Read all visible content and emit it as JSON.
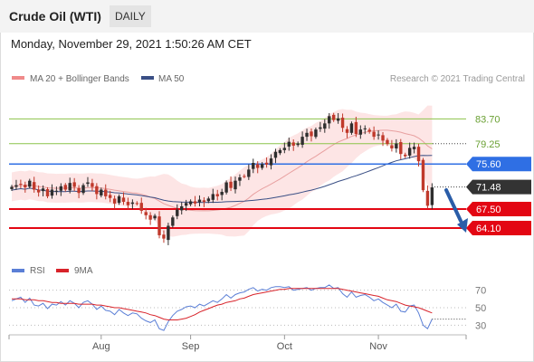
{
  "header": {
    "title": "Crude Oil (WTI)",
    "timeframe": "DAILY"
  },
  "datetime": "Monday, November 29, 2021 1:50:26 AM CET",
  "legend": {
    "ma": "MA 20 + Bollinger Bands",
    "ma50": "MA 50",
    "rsi": "RSI",
    "rsi_ma": "9MA"
  },
  "copyright": "Research © 2021 Trading Central",
  "colors": {
    "bull": "#2e2e2e",
    "bear": "#c0392b",
    "ma20": "#e8a0a0",
    "band": "#fde0e0",
    "ma50": "#3a4f85",
    "green": "#8bc34a",
    "blue": "#2f6fe4",
    "red": "#e30613",
    "arrow": "#2a5da8",
    "rsi": "#5b7fd6",
    "rsi_ma": "#d8232a"
  },
  "chart_data": [
    {
      "type": "candlestick",
      "title": "Crude Oil (WTI)",
      "price_range": [
        58.4,
        89.3
      ],
      "x_ticks": [
        "Aug",
        "Sep",
        "Oct",
        "Nov"
      ],
      "levels": [
        {
          "label": "83.70",
          "value": 83.7,
          "color": "green",
          "style": "line"
        },
        {
          "label": "79.25",
          "value": 79.25,
          "color": "green",
          "style": "dotted-label"
        },
        {
          "label": "75.60",
          "value": 75.6,
          "color": "blue",
          "style": "tag"
        },
        {
          "label": "71.48",
          "value": 71.48,
          "color": "last",
          "style": "tag"
        },
        {
          "label": "67.50",
          "value": 67.5,
          "color": "red",
          "style": "tag"
        },
        {
          "label": "64.10",
          "value": 64.1,
          "color": "red",
          "style": "tag"
        }
      ],
      "closes": [
        71.5,
        71.8,
        72.0,
        71.4,
        72.6,
        71.0,
        70.5,
        71.2,
        69.8,
        71.0,
        70.8,
        71.6,
        71.0,
        72.2,
        71.5,
        70.4,
        71.8,
        72.3,
        71.5,
        70.2,
        71.0,
        69.8,
        69.5,
        68.5,
        69.8,
        68.8,
        68.2,
        68.7,
        68.5,
        67.2,
        66.4,
        65.6,
        66.3,
        62.8,
        62.2,
        64.5,
        66.0,
        67.4,
        68.0,
        68.6,
        68.9,
        68.5,
        69.2,
        68.8,
        69.4,
        70.2,
        69.8,
        70.6,
        72.3,
        71.3,
        72.6,
        73.2,
        73.4,
        74.6,
        75.8,
        74.9,
        75.6,
        75.5,
        76.6,
        77.8,
        78.1,
        78.5,
        79.6,
        78.9,
        79.3,
        80.5,
        81.2,
        80.6,
        81.8,
        82.2,
        82.9,
        84.2,
        83.5,
        83.8,
        82.1,
        81.2,
        82.9,
        81.0,
        81.8,
        82.0,
        81.4,
        80.5,
        80.9,
        79.8,
        79.2,
        78.4,
        79.3,
        77.4,
        77.0,
        78.5,
        78.7,
        76.1,
        70.9,
        68.1,
        71.4
      ]
    },
    {
      "type": "line",
      "title": "RSI",
      "ylim": [
        20,
        80
      ],
      "y_ticks": [
        "70",
        "50",
        "30"
      ],
      "series": [
        {
          "name": "RSI",
          "values": [
            58,
            60,
            62,
            56,
            61,
            53,
            52,
            55,
            49,
            54,
            53,
            57,
            53,
            58,
            55,
            50,
            56,
            58,
            54,
            48,
            52,
            47,
            46,
            42,
            48,
            44,
            41,
            44,
            43,
            38,
            35,
            33,
            36,
            26,
            24,
            34,
            41,
            46,
            48,
            51,
            52,
            50,
            54,
            52,
            55,
            58,
            56,
            60,
            65,
            61,
            65,
            67,
            68,
            71,
            73,
            69,
            71,
            70,
            73,
            74,
            74,
            73,
            74,
            70,
            71,
            72,
            73,
            70,
            72,
            73,
            73,
            76,
            72,
            73,
            66,
            62,
            68,
            62,
            64,
            65,
            62,
            58,
            60,
            56,
            53,
            50,
            54,
            46,
            45,
            52,
            53,
            44,
            30,
            26,
            37
          ]
        },
        {
          "name": "9MA",
          "values": [
            60,
            60,
            60,
            59,
            59,
            59,
            58,
            58,
            57,
            56,
            56,
            55,
            55,
            55,
            55,
            54,
            54,
            54,
            54,
            53,
            53,
            52,
            51,
            50,
            50,
            49,
            48,
            47,
            46,
            45,
            44,
            42,
            41,
            39,
            37,
            36,
            36,
            36,
            37,
            38,
            40,
            42,
            45,
            47,
            49,
            51,
            53,
            54,
            56,
            57,
            58,
            60,
            61,
            63,
            65,
            66,
            67,
            68,
            69,
            70,
            71,
            71,
            72,
            72,
            72,
            72,
            72,
            72,
            72,
            72,
            72,
            72,
            72,
            72,
            71,
            70,
            69,
            68,
            67,
            66,
            65,
            64,
            63,
            61,
            59,
            58,
            57,
            55,
            53,
            52,
            51,
            50,
            48,
            46,
            44
          ]
        }
      ]
    }
  ]
}
